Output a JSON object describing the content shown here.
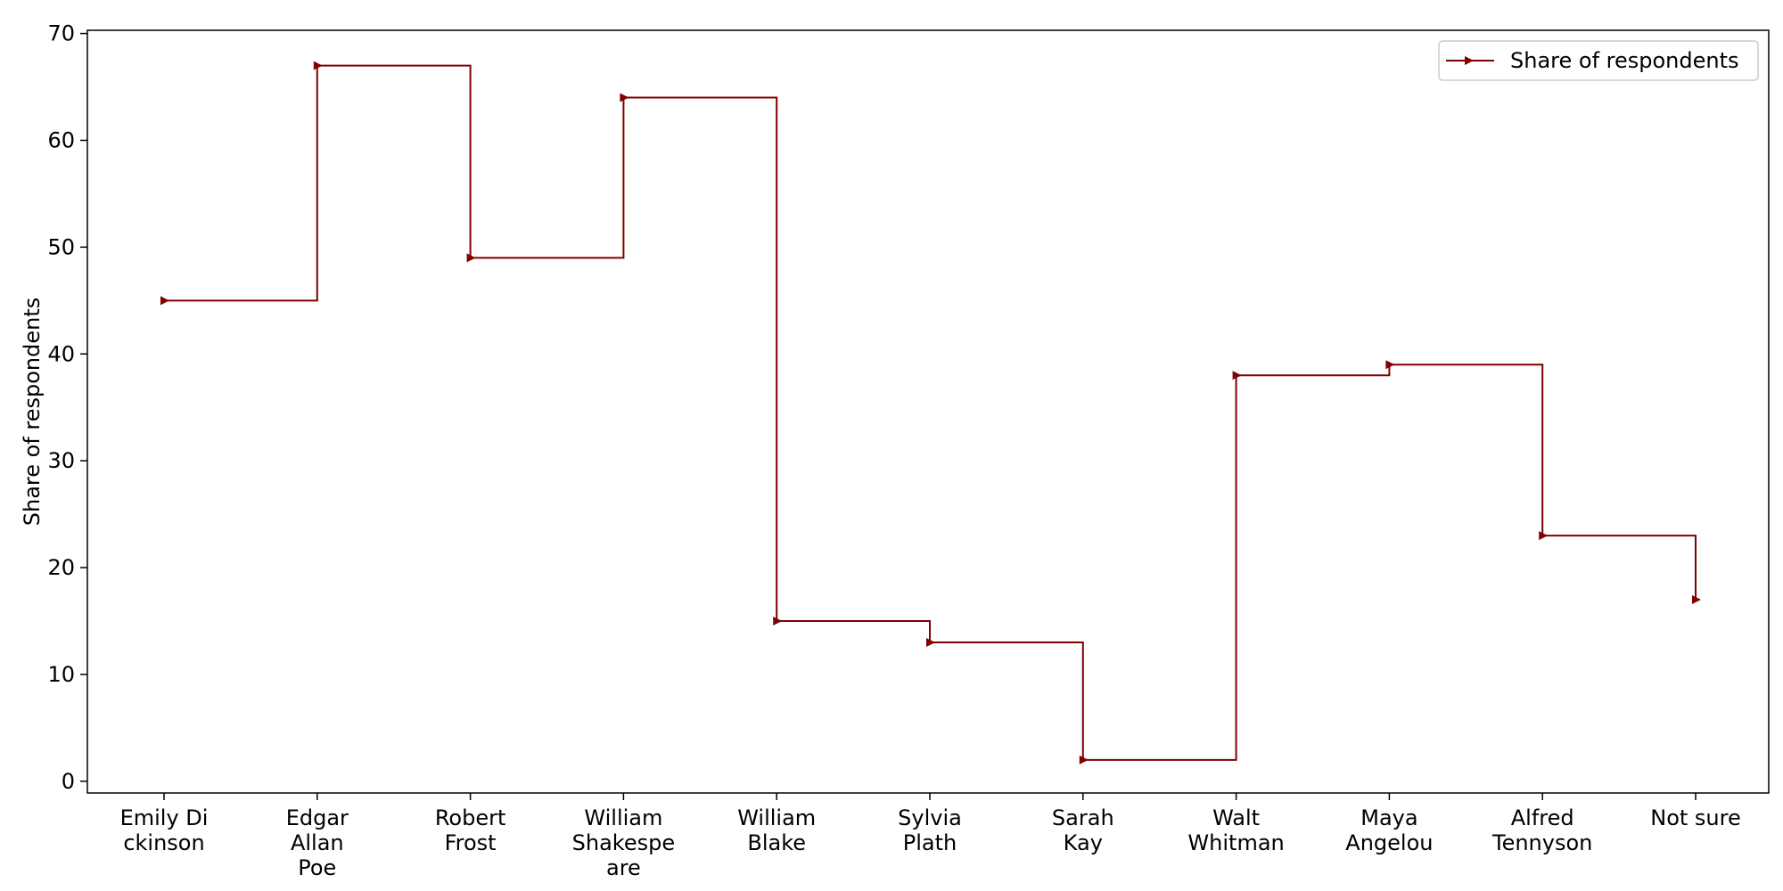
{
  "chart_data": {
    "type": "line",
    "step": "post",
    "categories": [
      [
        "Emily Di",
        "ckinson"
      ],
      [
        "Edgar",
        "Allan",
        "Poe"
      ],
      [
        "Robert",
        "Frost"
      ],
      [
        "William",
        "Shakespe",
        "are"
      ],
      [
        "William",
        "Blake"
      ],
      [
        "Sylvia",
        "Plath"
      ],
      [
        "Sarah",
        "Kay"
      ],
      [
        "Walt",
        "Whitman"
      ],
      [
        "Maya",
        "Angelou"
      ],
      [
        "Alfred",
        "Tennyson"
      ],
      [
        "Not sure"
      ]
    ],
    "series": [
      {
        "name": "Share of respondents",
        "values": [
          45,
          67,
          49,
          64,
          15,
          13,
          2,
          38,
          39,
          23,
          17
        ],
        "color": "#800000",
        "marker": "triangle-right"
      }
    ],
    "ylabel": "Share of respondents",
    "xlabel": "",
    "ylim": [
      -1.1,
      70.3
    ],
    "yticks": [
      0,
      10,
      20,
      30,
      40,
      50,
      60,
      70
    ],
    "grid": false,
    "legend_position": "top-right"
  }
}
